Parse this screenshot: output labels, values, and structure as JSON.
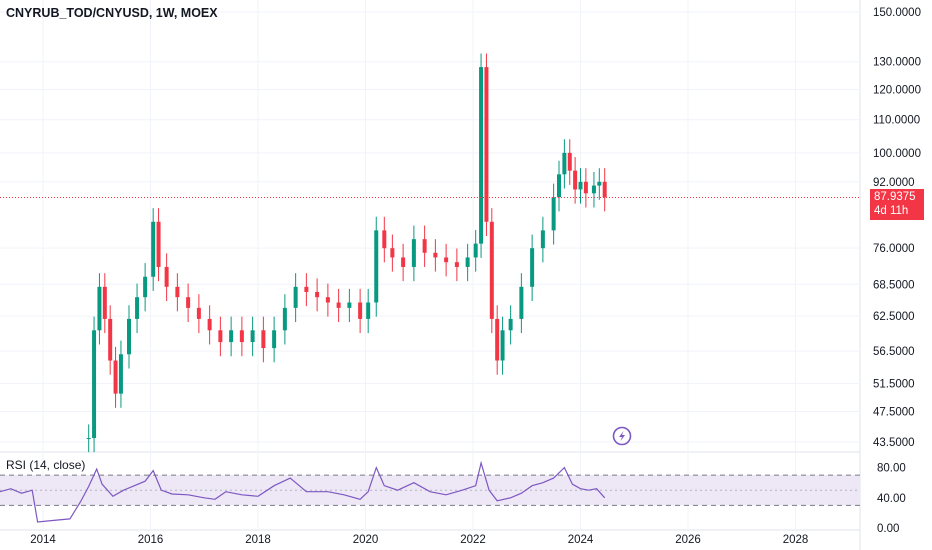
{
  "chart_title": "CNYRUB_TOD/CNYUSD, 1W, MOEX",
  "last_price": {
    "value": "87.9375",
    "countdown": "4d 11h",
    "color": "#f23645"
  },
  "colors": {
    "up": "#089981",
    "down": "#f23645",
    "rsi_line": "#7e57c2",
    "rsi_band": "#ede7f6",
    "grid": "#f0f3fa"
  },
  "icons": [
    "lightning-icon"
  ],
  "chart_data": [
    {
      "type": "candlestick",
      "title": "CNYRUB_TOD/CNYUSD, 1W, MOEX",
      "y_scale": "log",
      "y_ticks": [
        "150.0000",
        "130.0000",
        "120.0000",
        "110.0000",
        "100.0000",
        "92.0000",
        "76.0000",
        "68.5000",
        "62.5000",
        "56.5000",
        "51.5000",
        "47.5000",
        "43.5000"
      ],
      "x_ticks": [
        "2014",
        "2016",
        "2018",
        "2020",
        "2022",
        "2024",
        "2026",
        "2028"
      ],
      "x_range": [
        2013.2,
        2029.2
      ],
      "last_value": 87.9375,
      "series": [
        {
          "x": 2014.85,
          "y": 44
        },
        {
          "x": 2014.95,
          "y": 60
        },
        {
          "x": 2015.05,
          "y": 68
        },
        {
          "x": 2015.15,
          "y": 62
        },
        {
          "x": 2015.25,
          "y": 55
        },
        {
          "x": 2015.35,
          "y": 50
        },
        {
          "x": 2015.45,
          "y": 56
        },
        {
          "x": 2015.6,
          "y": 62
        },
        {
          "x": 2015.75,
          "y": 66
        },
        {
          "x": 2015.9,
          "y": 70
        },
        {
          "x": 2016.05,
          "y": 82
        },
        {
          "x": 2016.15,
          "y": 72
        },
        {
          "x": 2016.3,
          "y": 68
        },
        {
          "x": 2016.5,
          "y": 66
        },
        {
          "x": 2016.7,
          "y": 64
        },
        {
          "x": 2016.9,
          "y": 62
        },
        {
          "x": 2017.1,
          "y": 60
        },
        {
          "x": 2017.3,
          "y": 58
        },
        {
          "x": 2017.5,
          "y": 60
        },
        {
          "x": 2017.7,
          "y": 58
        },
        {
          "x": 2017.9,
          "y": 60
        },
        {
          "x": 2018.1,
          "y": 57
        },
        {
          "x": 2018.3,
          "y": 60
        },
        {
          "x": 2018.5,
          "y": 64
        },
        {
          "x": 2018.7,
          "y": 68
        },
        {
          "x": 2018.9,
          "y": 67
        },
        {
          "x": 2019.1,
          "y": 66
        },
        {
          "x": 2019.3,
          "y": 65
        },
        {
          "x": 2019.5,
          "y": 64
        },
        {
          "x": 2019.7,
          "y": 65
        },
        {
          "x": 2019.9,
          "y": 62
        },
        {
          "x": 2020.05,
          "y": 65
        },
        {
          "x": 2020.2,
          "y": 80
        },
        {
          "x": 2020.35,
          "y": 76
        },
        {
          "x": 2020.5,
          "y": 74
        },
        {
          "x": 2020.7,
          "y": 72
        },
        {
          "x": 2020.9,
          "y": 78
        },
        {
          "x": 2021.1,
          "y": 75
        },
        {
          "x": 2021.3,
          "y": 74
        },
        {
          "x": 2021.5,
          "y": 73
        },
        {
          "x": 2021.7,
          "y": 72
        },
        {
          "x": 2021.9,
          "y": 74
        },
        {
          "x": 2022.05,
          "y": 77
        },
        {
          "x": 2022.15,
          "y": 128
        },
        {
          "x": 2022.25,
          "y": 82
        },
        {
          "x": 2022.35,
          "y": 62
        },
        {
          "x": 2022.45,
          "y": 55
        },
        {
          "x": 2022.55,
          "y": 60
        },
        {
          "x": 2022.7,
          "y": 62
        },
        {
          "x": 2022.9,
          "y": 68
        },
        {
          "x": 2023.1,
          "y": 76
        },
        {
          "x": 2023.3,
          "y": 80
        },
        {
          "x": 2023.5,
          "y": 88
        },
        {
          "x": 2023.6,
          "y": 94
        },
        {
          "x": 2023.7,
          "y": 100
        },
        {
          "x": 2023.8,
          "y": 95
        },
        {
          "x": 2023.9,
          "y": 90
        },
        {
          "x": 2024.0,
          "y": 92
        },
        {
          "x": 2024.1,
          "y": 89
        },
        {
          "x": 2024.25,
          "y": 91
        },
        {
          "x": 2024.35,
          "y": 92
        },
        {
          "x": 2024.45,
          "y": 88
        }
      ]
    },
    {
      "type": "line",
      "title": "RSI (14, close)",
      "y_ticks": [
        "80.00",
        "40.00",
        "0.00"
      ],
      "ylim": [
        0,
        90
      ],
      "band": [
        30,
        70
      ],
      "series": [
        {
          "x": 2013.2,
          "y": 48
        },
        {
          "x": 2013.4,
          "y": 52
        },
        {
          "x": 2013.6,
          "y": 46
        },
        {
          "x": 2013.8,
          "y": 50
        },
        {
          "x": 2013.9,
          "y": 8
        },
        {
          "x": 2014.2,
          "y": 10
        },
        {
          "x": 2014.5,
          "y": 12
        },
        {
          "x": 2014.7,
          "y": 35
        },
        {
          "x": 2014.85,
          "y": 55
        },
        {
          "x": 2015.0,
          "y": 78
        },
        {
          "x": 2015.1,
          "y": 58
        },
        {
          "x": 2015.3,
          "y": 42
        },
        {
          "x": 2015.5,
          "y": 50
        },
        {
          "x": 2015.7,
          "y": 56
        },
        {
          "x": 2015.9,
          "y": 62
        },
        {
          "x": 2016.05,
          "y": 76
        },
        {
          "x": 2016.2,
          "y": 50
        },
        {
          "x": 2016.4,
          "y": 45
        },
        {
          "x": 2016.7,
          "y": 44
        },
        {
          "x": 2017.0,
          "y": 40
        },
        {
          "x": 2017.2,
          "y": 38
        },
        {
          "x": 2017.4,
          "y": 48
        },
        {
          "x": 2017.7,
          "y": 44
        },
        {
          "x": 2018.0,
          "y": 42
        },
        {
          "x": 2018.3,
          "y": 56
        },
        {
          "x": 2018.6,
          "y": 66
        },
        {
          "x": 2018.9,
          "y": 48
        },
        {
          "x": 2019.3,
          "y": 48
        },
        {
          "x": 2019.6,
          "y": 44
        },
        {
          "x": 2019.9,
          "y": 38
        },
        {
          "x": 2020.05,
          "y": 48
        },
        {
          "x": 2020.2,
          "y": 80
        },
        {
          "x": 2020.35,
          "y": 56
        },
        {
          "x": 2020.6,
          "y": 50
        },
        {
          "x": 2020.9,
          "y": 60
        },
        {
          "x": 2021.2,
          "y": 48
        },
        {
          "x": 2021.5,
          "y": 44
        },
        {
          "x": 2021.8,
          "y": 50
        },
        {
          "x": 2022.05,
          "y": 56
        },
        {
          "x": 2022.15,
          "y": 86
        },
        {
          "x": 2022.3,
          "y": 50
        },
        {
          "x": 2022.45,
          "y": 36
        },
        {
          "x": 2022.7,
          "y": 40
        },
        {
          "x": 2022.9,
          "y": 46
        },
        {
          "x": 2023.1,
          "y": 56
        },
        {
          "x": 2023.3,
          "y": 60
        },
        {
          "x": 2023.5,
          "y": 66
        },
        {
          "x": 2023.7,
          "y": 80
        },
        {
          "x": 2023.85,
          "y": 58
        },
        {
          "x": 2024.0,
          "y": 52
        },
        {
          "x": 2024.15,
          "y": 50
        },
        {
          "x": 2024.3,
          "y": 52
        },
        {
          "x": 2024.45,
          "y": 40
        }
      ]
    }
  ]
}
